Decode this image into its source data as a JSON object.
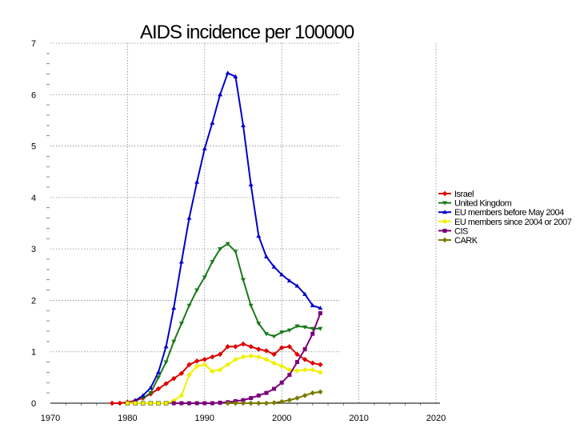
{
  "chart_data": {
    "type": "line",
    "title": "AIDS incidence per 100000",
    "xlabel": "",
    "ylabel": "",
    "xlim": [
      1970,
      2020
    ],
    "ylim": [
      0,
      7
    ],
    "x_ticks": [
      "1970",
      "1980",
      "1990",
      "2000",
      "2010",
      "2020"
    ],
    "y_ticks": [
      "0",
      "1",
      "2",
      "3",
      "4",
      "5",
      "6",
      "7"
    ],
    "grid": true,
    "legend_position": "right",
    "series": [
      {
        "name": "Israel",
        "color": "#e00000",
        "marker": "diamond",
        "x": [
          1978,
          1979,
          1980,
          1981,
          1982,
          1983,
          1984,
          1985,
          1986,
          1987,
          1988,
          1989,
          1990,
          1991,
          1992,
          1993,
          1994,
          1995,
          1996,
          1997,
          1998,
          1999,
          2000,
          2001,
          2002,
          2003,
          2004,
          2005
        ],
        "y": [
          0,
          0,
          0.02,
          0.05,
          0.1,
          0.18,
          0.28,
          0.38,
          0.48,
          0.58,
          0.75,
          0.82,
          0.85,
          0.9,
          0.95,
          1.1,
          1.1,
          1.15,
          1.1,
          1.05,
          1.02,
          0.95,
          1.08,
          1.1,
          0.95,
          0.85,
          0.78,
          0.75
        ]
      },
      {
        "name": "United Kingdom",
        "color": "#1a7a1a",
        "marker": "triangle-down",
        "x": [
          1982,
          1983,
          1984,
          1985,
          1986,
          1987,
          1988,
          1989,
          1990,
          1991,
          1992,
          1993,
          1994,
          1995,
          1996,
          1997,
          1998,
          1999,
          2000,
          2001,
          2002,
          2003,
          2004,
          2005
        ],
        "y": [
          0.1,
          0.2,
          0.5,
          0.8,
          1.2,
          1.55,
          1.9,
          2.2,
          2.45,
          2.75,
          3.0,
          3.1,
          2.95,
          2.4,
          1.9,
          1.55,
          1.35,
          1.3,
          1.38,
          1.42,
          1.5,
          1.48,
          1.45,
          1.45
        ]
      },
      {
        "name": "EU members before May 2004",
        "color": "#0000cc",
        "marker": "triangle-up",
        "x": [
          1981,
          1982,
          1983,
          1984,
          1985,
          1986,
          1987,
          1988,
          1989,
          1990,
          1991,
          1992,
          1993,
          1994,
          1995,
          1996,
          1997,
          1998,
          1999,
          2000,
          2001,
          2002,
          2003,
          2004,
          2005
        ],
        "y": [
          0.05,
          0.15,
          0.3,
          0.6,
          1.1,
          1.85,
          2.75,
          3.6,
          4.3,
          4.95,
          5.45,
          6.0,
          6.42,
          6.35,
          5.4,
          4.25,
          3.25,
          2.85,
          2.65,
          2.5,
          2.38,
          2.28,
          2.12,
          1.9,
          1.85
        ]
      },
      {
        "name": "EU members since 2004 or 2007",
        "color": "#f0f000",
        "marker": "diamond",
        "x": [
          1980,
          1981,
          1982,
          1983,
          1984,
          1985,
          1986,
          1987,
          1988,
          1989,
          1990,
          1991,
          1992,
          1993,
          1994,
          1995,
          1996,
          1997,
          1998,
          1999,
          2000,
          2001,
          2002,
          2003,
          2004,
          2005
        ],
        "y": [
          0,
          0,
          0,
          0,
          0,
          0,
          0.05,
          0.15,
          0.55,
          0.72,
          0.75,
          0.62,
          0.65,
          0.75,
          0.85,
          0.9,
          0.92,
          0.9,
          0.85,
          0.78,
          0.72,
          0.65,
          0.63,
          0.65,
          0.65,
          0.6
        ]
      },
      {
        "name": "CIS",
        "color": "#7a007a",
        "marker": "square",
        "x": [
          1986,
          1987,
          1988,
          1989,
          1990,
          1991,
          1992,
          1993,
          1994,
          1995,
          1996,
          1997,
          1998,
          1999,
          2000,
          2001,
          2002,
          2003,
          2004,
          2005
        ],
        "y": [
          0,
          0,
          0,
          0,
          0,
          0,
          0.01,
          0.02,
          0.04,
          0.06,
          0.1,
          0.15,
          0.2,
          0.28,
          0.4,
          0.55,
          0.8,
          1.05,
          1.35,
          1.75
        ]
      },
      {
        "name": "CARK",
        "color": "#7a7a00",
        "marker": "diamond",
        "x": [
          1993,
          1994,
          1995,
          1996,
          1997,
          1998,
          1999,
          2000,
          2001,
          2002,
          2003,
          2004,
          2005
        ],
        "y": [
          0,
          0,
          0,
          0,
          0,
          0,
          0.01,
          0.03,
          0.06,
          0.1,
          0.15,
          0.2,
          0.22
        ]
      }
    ]
  }
}
